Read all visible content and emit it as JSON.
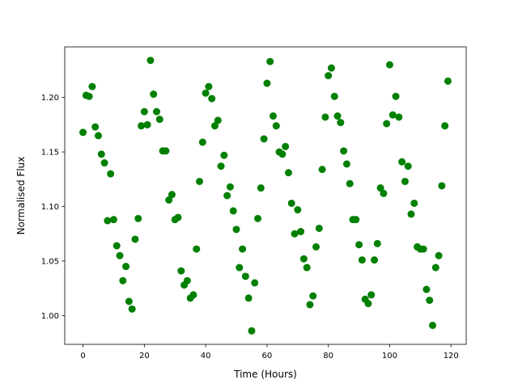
{
  "chart_data": {
    "type": "scatter",
    "x_label": "Time (Hours)",
    "y_label": "Normalised Flux",
    "color": "#008000",
    "grid": false,
    "xlim": [
      -5.95,
      124.95
    ],
    "xticks": [
      0,
      20,
      40,
      60,
      80,
      100,
      120
    ],
    "ylim": [
      0.9736,
      1.2464
    ],
    "yticks": [
      {
        "value": 1,
        "label": "1.00"
      },
      1.05,
      {
        "value": 1.1,
        "label": "1.10"
      },
      1.15,
      {
        "value": 1.2,
        "label": "1.20"
      }
    ],
    "series": [
      {
        "name": "Flux",
        "color": "#008000",
        "x": [
          0,
          1,
          2,
          3,
          4,
          5,
          6,
          7,
          8,
          9,
          10,
          11,
          12,
          13,
          14,
          15,
          16,
          17,
          18,
          19,
          20,
          21,
          22,
          23,
          24,
          25,
          26,
          27,
          28,
          29,
          30,
          31,
          32,
          33,
          34,
          35,
          36,
          37,
          38,
          39,
          40,
          41,
          42,
          43,
          44,
          45,
          46,
          47,
          48,
          49,
          50,
          51,
          52,
          53,
          54,
          55,
          56,
          57,
          58,
          59,
          60,
          61,
          62,
          63,
          64,
          65,
          66,
          67,
          68,
          69,
          70,
          71,
          72,
          73,
          74,
          75,
          76,
          77,
          78,
          79,
          80,
          81,
          82,
          83,
          84,
          85,
          86,
          87,
          88,
          89,
          90,
          91,
          92,
          93,
          94,
          95,
          96,
          97,
          98,
          99,
          100,
          101,
          102,
          103,
          104,
          105,
          106,
          107,
          108,
          109,
          110,
          111,
          112,
          113,
          114,
          115,
          116,
          117,
          118,
          119
        ],
        "values": [
          1.168,
          1.202,
          1.201,
          1.21,
          1.173,
          1.165,
          1.148,
          1.14,
          1.087,
          1.13,
          1.088,
          1.064,
          1.055,
          1.032,
          1.045,
          1.013,
          1.006,
          1.07,
          1.089,
          1.174,
          1.187,
          1.175,
          1.234,
          1.203,
          1.187,
          1.18,
          1.151,
          1.151,
          1.106,
          1.111,
          1.088,
          1.09,
          1.041,
          1.028,
          1.032,
          1.016,
          1.019,
          1.061,
          1.123,
          1.159,
          1.204,
          1.21,
          1.199,
          1.174,
          1.179,
          1.137,
          1.147,
          1.11,
          1.118,
          1.096,
          1.079,
          1.044,
          1.061,
          1.036,
          1.016,
          0.986,
          1.03,
          1.089,
          1.117,
          1.162,
          1.213,
          1.233,
          1.183,
          1.174,
          1.15,
          1.148,
          1.155,
          1.131,
          1.103,
          1.075,
          1.097,
          1.077,
          1.052,
          1.044,
          1.01,
          1.018,
          1.063,
          1.08,
          1.134,
          1.182,
          1.22,
          1.227,
          1.201,
          1.183,
          1.177,
          1.151,
          1.139,
          1.121,
          1.088,
          1.088,
          1.065,
          1.051,
          1.015,
          1.011,
          1.019,
          1.051,
          1.066,
          1.117,
          1.112,
          1.176,
          1.23,
          1.184,
          1.201,
          1.182,
          1.141,
          1.123,
          1.137,
          1.093,
          1.103,
          1.063,
          1.061,
          1.061,
          1.024,
          1.014,
          0.991,
          1.044,
          1.055,
          1.119,
          1.174,
          1.215
        ]
      }
    ]
  }
}
